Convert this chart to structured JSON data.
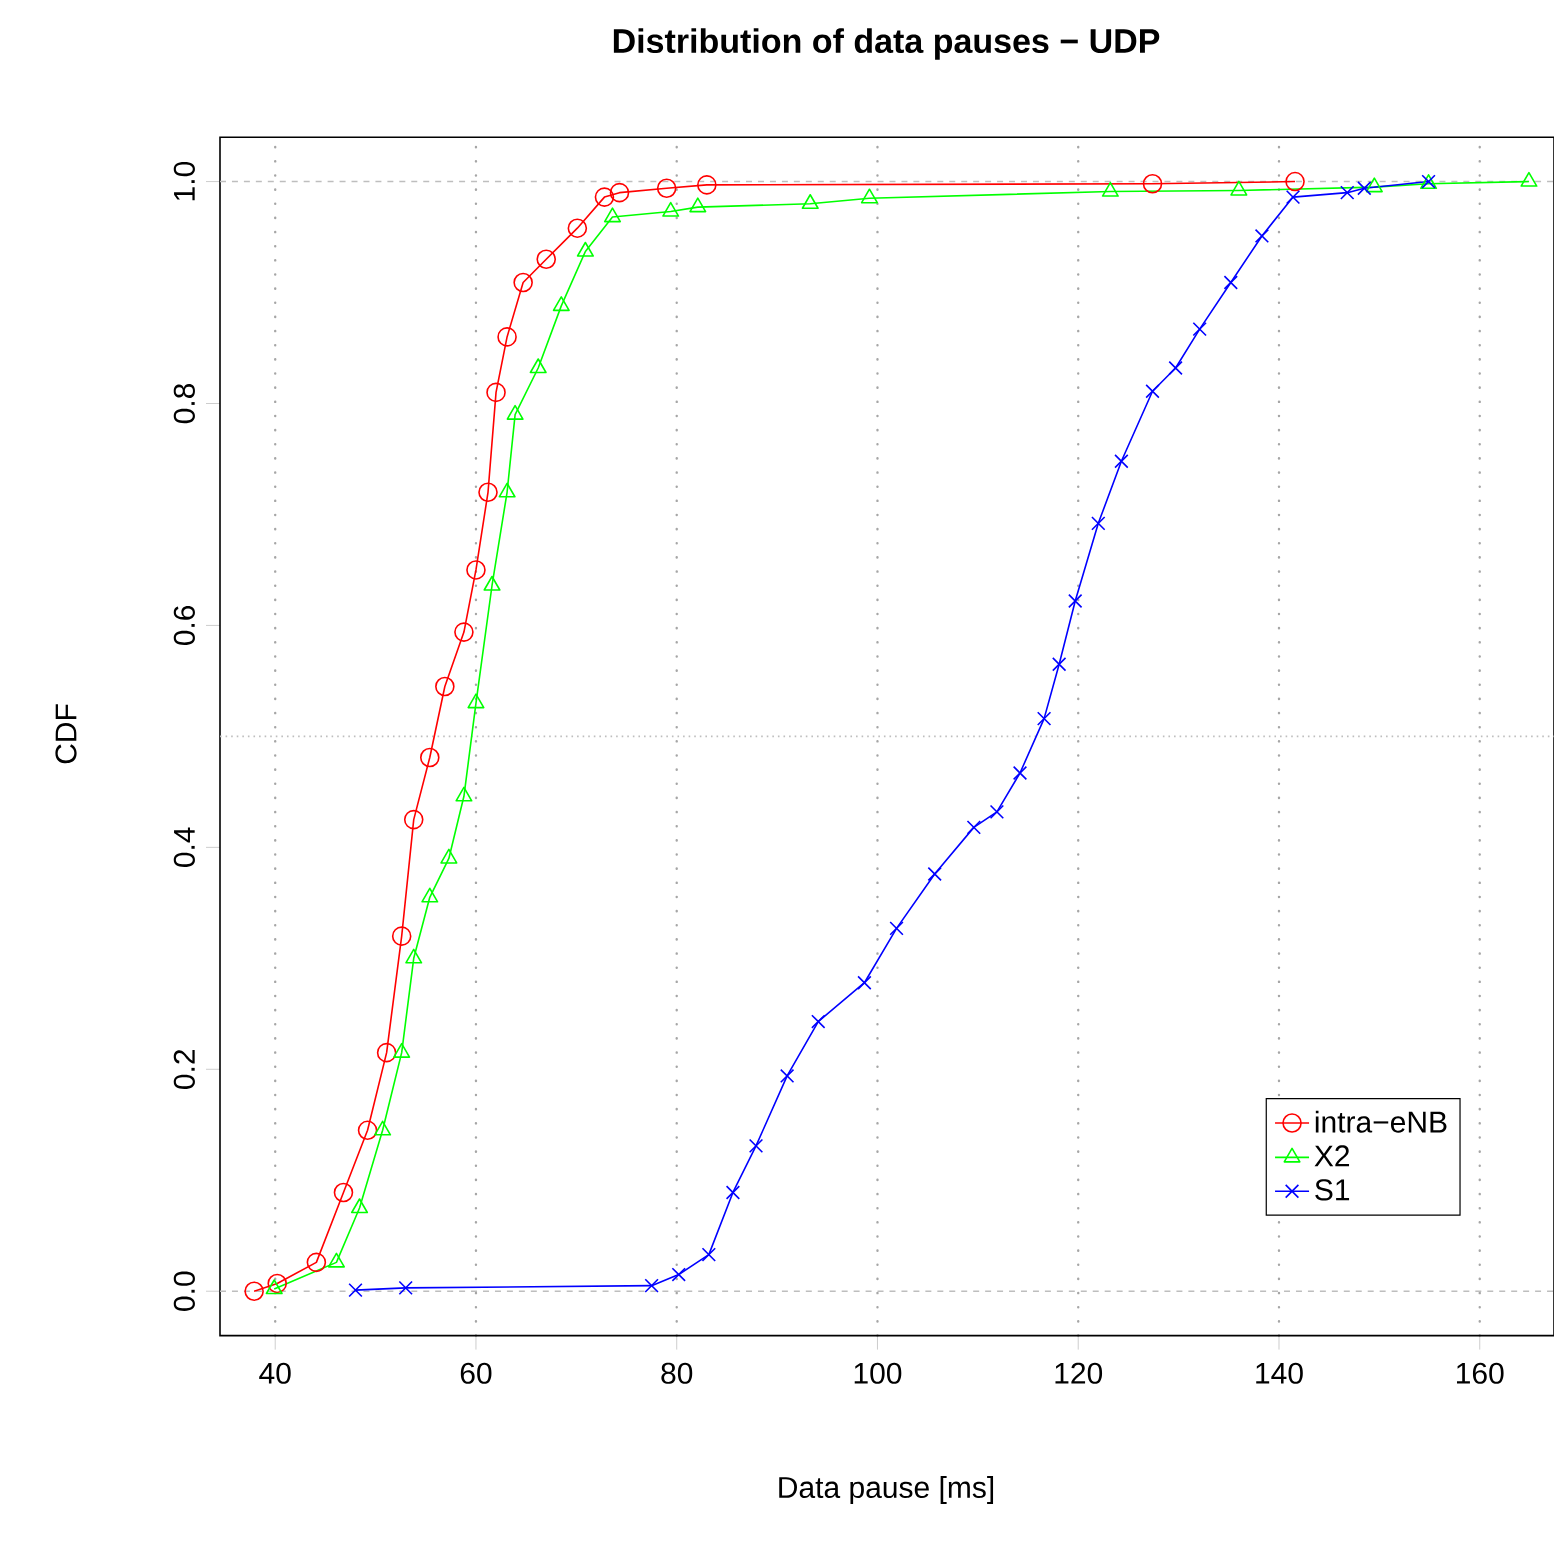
{
  "chart_data": {
    "type": "line",
    "title": "Distribution of data pauses − UDP",
    "xlabel": "Data pause [ms]",
    "ylabel": "CDF",
    "xlim": [
      34.5,
      167.4
    ],
    "ylim": [
      -0.04,
      1.04
    ],
    "xticks": [
      40,
      60,
      80,
      100,
      120,
      140,
      160
    ],
    "yticks": [
      {
        "value": 0,
        "label": "0.0"
      },
      0.2,
      0.4,
      0.6,
      0.8,
      {
        "value": 1,
        "label": "1.0"
      }
    ],
    "grid": "x",
    "legend": "bottom right",
    "line_style": "solid",
    "ref_lines": [
      {
        "axis": "y",
        "value": 0,
        "color": "#bebebe",
        "line_style": "dashed"
      },
      {
        "axis": "y",
        "value": 1,
        "color": "#bebebe",
        "line_style": "dashed"
      },
      {
        "axis": "y",
        "value": 0.5,
        "color": "#bebebe",
        "line_style": "dotted"
      }
    ],
    "series": [
      {
        "name": "intra−eNB",
        "color": "#ff0000",
        "marker": "circle",
        "x": [
          37.9,
          40.2,
          44.1,
          46.8,
          49.2,
          51.1,
          52.6,
          53.8,
          55.4,
          56.9,
          58.8,
          60.0,
          61.2,
          62.0,
          63.1,
          64.7,
          67.0,
          70.1,
          72.8,
          74.3,
          79.0,
          83.0,
          127.4,
          141.6
        ],
        "values": [
          0,
          0.007,
          0.026,
          0.089,
          0.145,
          0.215,
          0.32,
          0.425,
          0.481,
          0.545,
          0.594,
          0.65,
          0.72,
          0.81,
          0.86,
          0.909,
          0.93,
          0.958,
          0.986,
          0.99,
          0.994,
          0.997,
          0.998,
          1.0
        ]
      },
      {
        "name": "X2",
        "color": "#00ff00",
        "marker": "triangle",
        "x": [
          39.9,
          46.1,
          48.4,
          50.7,
          52.6,
          53.8,
          55.4,
          57.3,
          58.8,
          60.0,
          61.6,
          63.1,
          63.9,
          66.2,
          68.5,
          70.9,
          73.6,
          79.4,
          82.1,
          93.3,
          99.2,
          123.2,
          136.0,
          149.5,
          154.9,
          164.9
        ],
        "values": [
          0.002,
          0.026,
          0.075,
          0.145,
          0.215,
          0.3,
          0.355,
          0.39,
          0.446,
          0.53,
          0.636,
          0.72,
          0.79,
          0.832,
          0.888,
          0.937,
          0.968,
          0.973,
          0.977,
          0.98,
          0.985,
          0.991,
          0.992,
          0.995,
          0.998,
          1.0
        ]
      },
      {
        "name": "S1",
        "color": "#0000ff",
        "marker": "cross",
        "x": [
          48.0,
          53.0,
          77.5,
          80.2,
          83.2,
          85.6,
          87.9,
          91.0,
          94.1,
          98.7,
          101.9,
          105.7,
          109.6,
          111.9,
          114.2,
          116.6,
          118.1,
          119.7,
          122.0,
          124.3,
          127.4,
          129.7,
          132.1,
          135.2,
          138.3,
          141.4,
          146.8,
          148.5,
          154.9
        ],
        "values": [
          0.001,
          0.003,
          0.005,
          0.015,
          0.033,
          0.089,
          0.131,
          0.194,
          0.243,
          0.278,
          0.327,
          0.376,
          0.418,
          0.432,
          0.467,
          0.516,
          0.565,
          0.622,
          0.692,
          0.748,
          0.811,
          0.832,
          0.867,
          0.909,
          0.951,
          0.986,
          0.99,
          0.994,
          1.0
        ]
      }
    ]
  }
}
